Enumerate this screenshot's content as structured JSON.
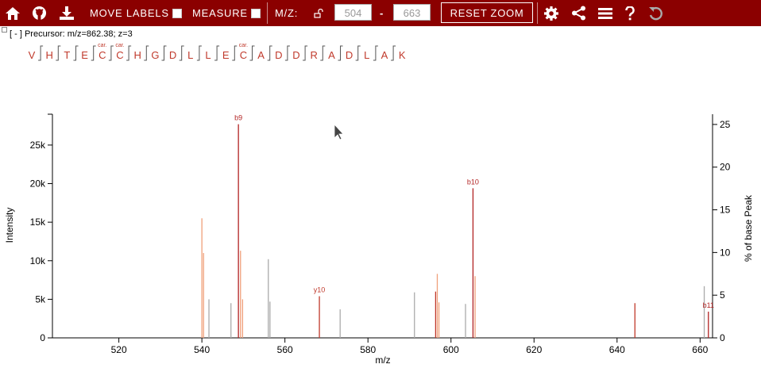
{
  "toolbar": {
    "move_labels": "MOVE LABELS",
    "measure": "MEASURE",
    "mz_label": "M/Z:",
    "mz_from": "504",
    "mz_dash": "-",
    "mz_to": "663",
    "reset_zoom": "RESET ZOOM",
    "icons": [
      "home-icon",
      "github-icon",
      "download-icon",
      "lock-icon",
      "gear-icon",
      "share-icon",
      "menu-icon",
      "help-icon",
      "undo-icon"
    ],
    "color": "#8b0000"
  },
  "precursor": {
    "toggle": "[ - ]",
    "text": "Precursor: m/z=862.38; z=3"
  },
  "peptide": {
    "residues": [
      "V",
      "H",
      "T",
      "E",
      "C",
      "C",
      "H",
      "G",
      "D",
      "L",
      "L",
      "E",
      "C",
      "A",
      "D",
      "D",
      "R",
      "A",
      "D",
      "L",
      "A",
      "K"
    ],
    "mods": {
      "4": "car.",
      "5": "car.",
      "12": "car."
    },
    "color": "#c0392b"
  },
  "chart_data": {
    "type": "bar",
    "xlabel": "m/z",
    "ylabel": "Intensity",
    "y2label": "% of base Peak",
    "xlim": [
      504,
      663
    ],
    "ylim": [
      0,
      29000
    ],
    "y2lim": [
      0,
      26.2
    ],
    "x_ticks": [
      520,
      540,
      560,
      580,
      600,
      620,
      640,
      660
    ],
    "y_ticks": [
      0,
      5000,
      10000,
      15000,
      20000,
      25000
    ],
    "y_tick_labels": [
      "0",
      "5k",
      "10k",
      "15k",
      "20k",
      "25k"
    ],
    "y2_ticks": [
      0,
      5,
      10,
      15,
      20,
      25
    ],
    "colors": {
      "b": "#b22222",
      "y": "#c0392b",
      "iso": "#f0a07a",
      "none": "#aaaaaa"
    },
    "peaks": [
      {
        "mz": 540.0,
        "i": 15500,
        "kind": "iso"
      },
      {
        "mz": 540.4,
        "i": 11000,
        "kind": "iso"
      },
      {
        "mz": 541.7,
        "i": 5000,
        "kind": "none"
      },
      {
        "mz": 547.0,
        "i": 4500,
        "kind": "none"
      },
      {
        "mz": 548.8,
        "i": 27700,
        "kind": "b",
        "label": "b9"
      },
      {
        "mz": 549.3,
        "i": 11300,
        "kind": "iso"
      },
      {
        "mz": 549.8,
        "i": 5000,
        "kind": "iso"
      },
      {
        "mz": 556.0,
        "i": 10200,
        "kind": "none"
      },
      {
        "mz": 556.4,
        "i": 4700,
        "kind": "none"
      },
      {
        "mz": 568.3,
        "i": 5400,
        "kind": "y",
        "label": "y10"
      },
      {
        "mz": 573.3,
        "i": 3700,
        "kind": "none"
      },
      {
        "mz": 591.2,
        "i": 5900,
        "kind": "none"
      },
      {
        "mz": 596.3,
        "i": 6000,
        "kind": "y"
      },
      {
        "mz": 596.7,
        "i": 8300,
        "kind": "iso"
      },
      {
        "mz": 597.1,
        "i": 4600,
        "kind": "iso"
      },
      {
        "mz": 603.5,
        "i": 4400,
        "kind": "none"
      },
      {
        "mz": 605.3,
        "i": 19400,
        "kind": "b",
        "label": "b10"
      },
      {
        "mz": 605.8,
        "i": 8000,
        "kind": "iso"
      },
      {
        "mz": 644.3,
        "i": 4500,
        "kind": "y"
      },
      {
        "mz": 661.0,
        "i": 6700,
        "kind": "none"
      },
      {
        "mz": 662.0,
        "i": 3400,
        "kind": "b",
        "label": "b11"
      }
    ]
  }
}
